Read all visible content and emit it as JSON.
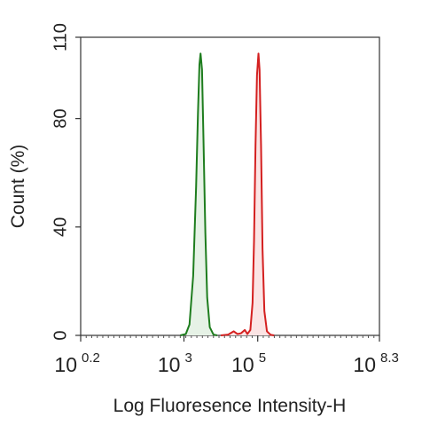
{
  "chart_data": {
    "type": "area",
    "x_scale": "log10",
    "xlim": [
      0.2,
      8.3
    ],
    "ylim": [
      0,
      110
    ],
    "xlabel": "Log Fluoresence Intensity-H",
    "ylabel": "Count  (%)",
    "yticks": [
      {
        "value": 0,
        "label": "0"
      },
      {
        "value": 40,
        "label": "40"
      },
      {
        "value": 80,
        "label": "80"
      },
      {
        "value": 110,
        "label": "110"
      }
    ],
    "xticks": [
      {
        "exponent": 0.2,
        "base": "10",
        "exp": "0.2"
      },
      {
        "exponent": 3,
        "base": "10",
        "exp": "3"
      },
      {
        "exponent": 5,
        "base": "10",
        "exp": "5"
      },
      {
        "exponent": 8.3,
        "base": "10",
        "exp": "8.3"
      }
    ],
    "grid": false,
    "legend": "none",
    "series": [
      {
        "color": "#1e7d1e",
        "fill": "#e6f2e6",
        "points": [
          [
            2.9,
            0
          ],
          [
            3.05,
            0.5
          ],
          [
            3.15,
            4
          ],
          [
            3.25,
            22
          ],
          [
            3.33,
            55
          ],
          [
            3.38,
            82
          ],
          [
            3.42,
            100
          ],
          [
            3.45,
            104
          ],
          [
            3.49,
            98
          ],
          [
            3.53,
            72
          ],
          [
            3.58,
            38
          ],
          [
            3.63,
            14
          ],
          [
            3.7,
            3
          ],
          [
            3.8,
            0.3
          ],
          [
            3.9,
            0
          ]
        ]
      },
      {
        "color": "#d42020",
        "fill": "#fbe4e4",
        "points": [
          [
            4.0,
            0
          ],
          [
            4.2,
            0.3
          ],
          [
            4.35,
            1.5
          ],
          [
            4.45,
            0.5
          ],
          [
            4.55,
            0.8
          ],
          [
            4.65,
            2.0
          ],
          [
            4.72,
            0.5
          ],
          [
            4.8,
            2
          ],
          [
            4.86,
            12
          ],
          [
            4.9,
            35
          ],
          [
            4.94,
            70
          ],
          [
            4.98,
            96
          ],
          [
            5.02,
            104
          ],
          [
            5.05,
            98
          ],
          [
            5.09,
            70
          ],
          [
            5.13,
            32
          ],
          [
            5.18,
            9
          ],
          [
            5.25,
            1.5
          ],
          [
            5.35,
            0.2
          ],
          [
            5.45,
            0
          ]
        ]
      }
    ]
  }
}
